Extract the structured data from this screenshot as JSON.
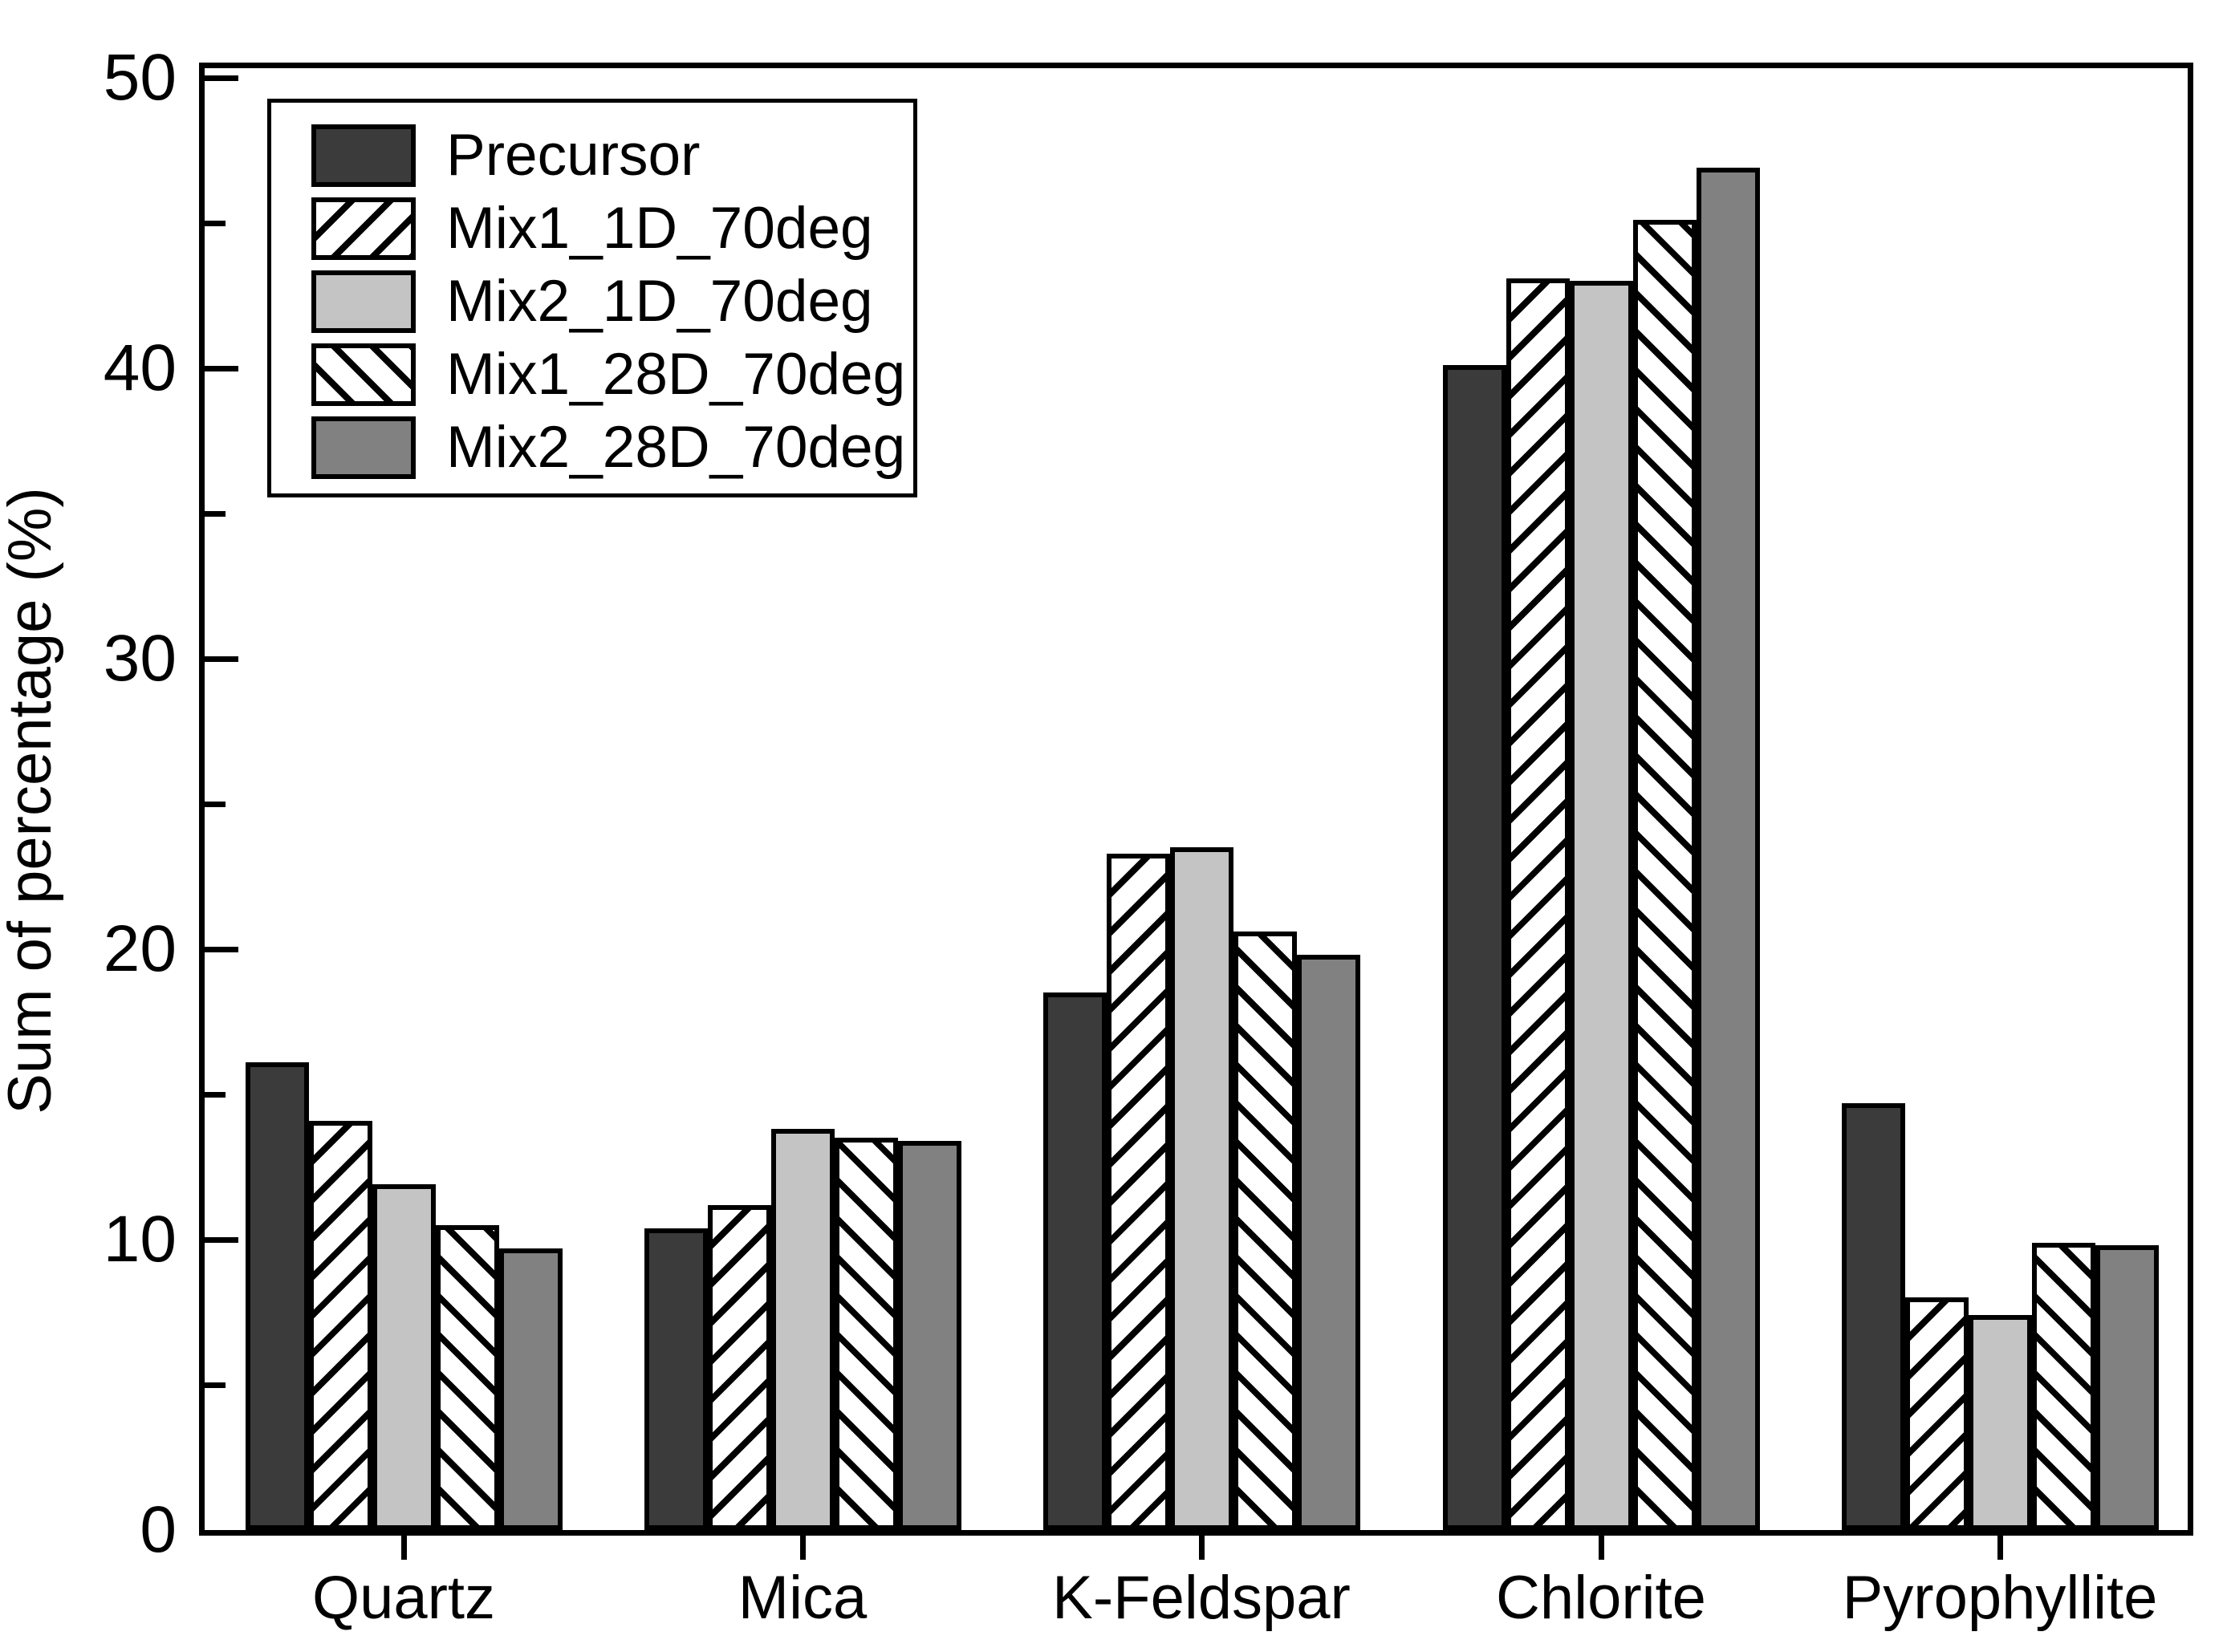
{
  "figure": {
    "background": "#ffffff",
    "text_color": "#000000"
  },
  "chart_data": {
    "type": "bar",
    "title": "",
    "xlabel": "",
    "ylabel": "Sum of percentage (%)",
    "categories": [
      "Quartz",
      "Mica",
      "K-Feldspar",
      "Chlorite",
      "Pyrophyllite"
    ],
    "series": [
      {
        "name": "Precursor",
        "style": "solid-dark",
        "color": "#3b3b3b",
        "values": [
          16.1,
          10.4,
          18.5,
          40.1,
          14.7
        ]
      },
      {
        "name": "Mix1_1D_70deg",
        "style": "hatch-forward",
        "color": "#ffffff",
        "values": [
          14.1,
          11.2,
          23.3,
          43.1,
          8.0
        ]
      },
      {
        "name": "Mix2_1D_70deg",
        "style": "solid-light",
        "color": "#c4c4c4",
        "values": [
          11.9,
          13.8,
          23.5,
          43.0,
          7.4
        ]
      },
      {
        "name": "Mix1_28D_70deg",
        "style": "hatch-backward",
        "color": "#ffffff",
        "values": [
          10.5,
          13.5,
          20.6,
          45.1,
          9.9
        ]
      },
      {
        "name": "Mix2_28D_70deg",
        "style": "solid-medium",
        "color": "#818181",
        "values": [
          9.7,
          13.4,
          19.8,
          46.9,
          9.8
        ]
      }
    ],
    "ylim": [
      0,
      50.4
    ],
    "yticks_major": [
      0,
      10,
      20,
      30,
      40,
      50
    ],
    "yticks_minor": [
      5,
      15,
      25,
      35,
      45
    ],
    "grid": false,
    "legend_position": "upper-left",
    "bar_edge_color": "#000000"
  }
}
